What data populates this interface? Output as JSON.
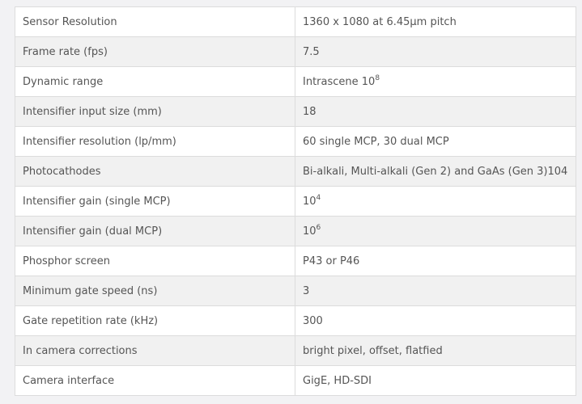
{
  "rows": [
    {
      "label": "Sensor Resolution",
      "value": "1360 x 1080 at 6.45μm pitch"
    },
    {
      "label": "Frame rate (fps)",
      "value": "7.5"
    },
    {
      "label": "Dynamic range",
      "value": "Intrascene 10",
      "sup": "8"
    },
    {
      "label": "Intensifier input size (mm)",
      "value": "18"
    },
    {
      "label": "Intensifier resolution (lp/mm)",
      "value": "60 single MCP, 30 dual MCP"
    },
    {
      "label": "Photocathodes",
      "value": "Bi-alkali, Multi-alkali (Gen 2) and GaAs (Gen 3)104"
    },
    {
      "label": "Intensifier gain (single MCP)",
      "value": "10",
      "sup": "4"
    },
    {
      "label": "Intensifier gain (dual MCP)",
      "value": "10",
      "sup": "6"
    },
    {
      "label": "Phosphor screen",
      "value": "P43 or P46"
    },
    {
      "label": "Minimum gate speed (ns)",
      "value": "3"
    },
    {
      "label": "Gate repetition rate (kHz)",
      "value": "300"
    },
    {
      "label": "In camera corrections",
      "value": "bright pixel, offset, flatfied"
    },
    {
      "label": "Camera interface",
      "value": "GigE, HD-SDI"
    }
  ]
}
